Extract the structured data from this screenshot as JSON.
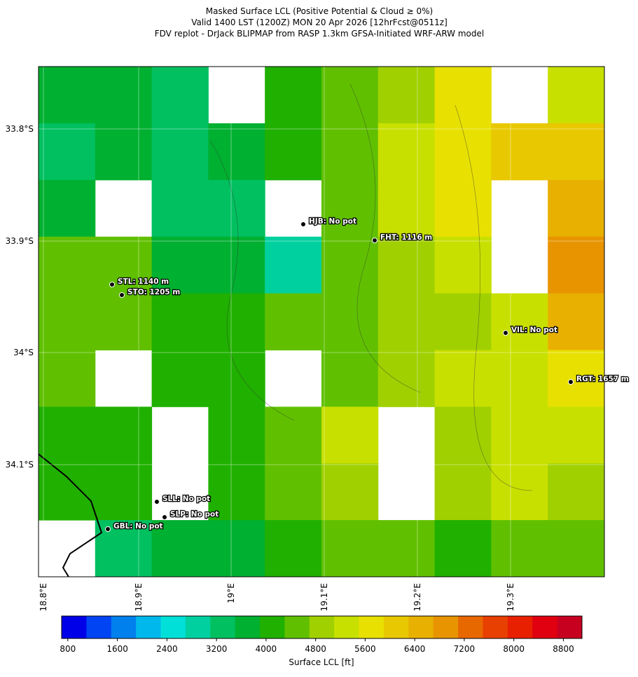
{
  "chart_data": {
    "type": "raster-map",
    "title_lines": [
      "Masked Surface LCL (Positive Potential & Cloud ≥ 0%)",
      "Valid 1400 LST (1200Z) MON 20 Apr 2026 [12hrFcst@0511z]",
      "FDV replot - DrJack BLIPMAP from RASP 1.3km GFSA-Initiated WRF-ARW model"
    ],
    "lon_labels": [
      "18.8°E",
      "18.9°E",
      "19°E",
      "19.1°E",
      "19.2°E",
      "19.3°E"
    ],
    "lat_labels": [
      "33.8°S",
      "33.9°S",
      "34°S",
      "34.1°S"
    ],
    "grid": [
      [
        3600,
        3600,
        3200,
        null,
        4000,
        4400,
        4800,
        5600,
        null,
        5200
      ],
      [
        3200,
        3600,
        3200,
        3600,
        4000,
        4400,
        5200,
        5600,
        6000,
        6000
      ],
      [
        3600,
        null,
        3200,
        3200,
        null,
        4400,
        5200,
        5600,
        null,
        6400
      ],
      [
        4400,
        4400,
        3600,
        3600,
        2800,
        4400,
        4800,
        5200,
        null,
        6800
      ],
      [
        4400,
        4400,
        4000,
        4000,
        4400,
        4400,
        4800,
        4800,
        5200,
        6400
      ],
      [
        4400,
        null,
        4000,
        4000,
        null,
        4400,
        4800,
        5200,
        5200,
        5600
      ],
      [
        4000,
        4000,
        null,
        4000,
        4400,
        5200,
        null,
        4800,
        5200,
        5200
      ],
      [
        4000,
        4000,
        null,
        4000,
        4400,
        4800,
        null,
        4800,
        5200,
        4800
      ],
      [
        null,
        3200,
        3600,
        3600,
        4000,
        4400,
        4400,
        4000,
        4400,
        4400
      ]
    ],
    "stations": [
      "HJB: No pot",
      "FHT: 1116 m",
      "STL: 1140 m",
      "STO: 1205 m",
      "VIL: No pot",
      "RGT: 1657 m",
      "SLL: No pot",
      "SLP: No pot",
      "GBL: No pot"
    ],
    "colorbar": {
      "label": "Surface LCL [ft]",
      "clim": [
        700,
        9100
      ],
      "step": 400,
      "colors": [
        "#0000e8",
        "#0044f4",
        "#0080ec",
        "#00b8ec",
        "#00e0d8",
        "#00d0a0",
        "#00c060",
        "#00b030",
        "#20b000",
        "#60c000",
        "#a0d000",
        "#c8e000",
        "#e8e000",
        "#e8c800",
        "#e8b000",
        "#e89400",
        "#e86800",
        "#e84000",
        "#e82000",
        "#e00010",
        "#c80020"
      ],
      "ticks": [
        800,
        1600,
        2400,
        3200,
        4000,
        4800,
        5600,
        6400,
        7200,
        8000,
        8800
      ]
    }
  }
}
